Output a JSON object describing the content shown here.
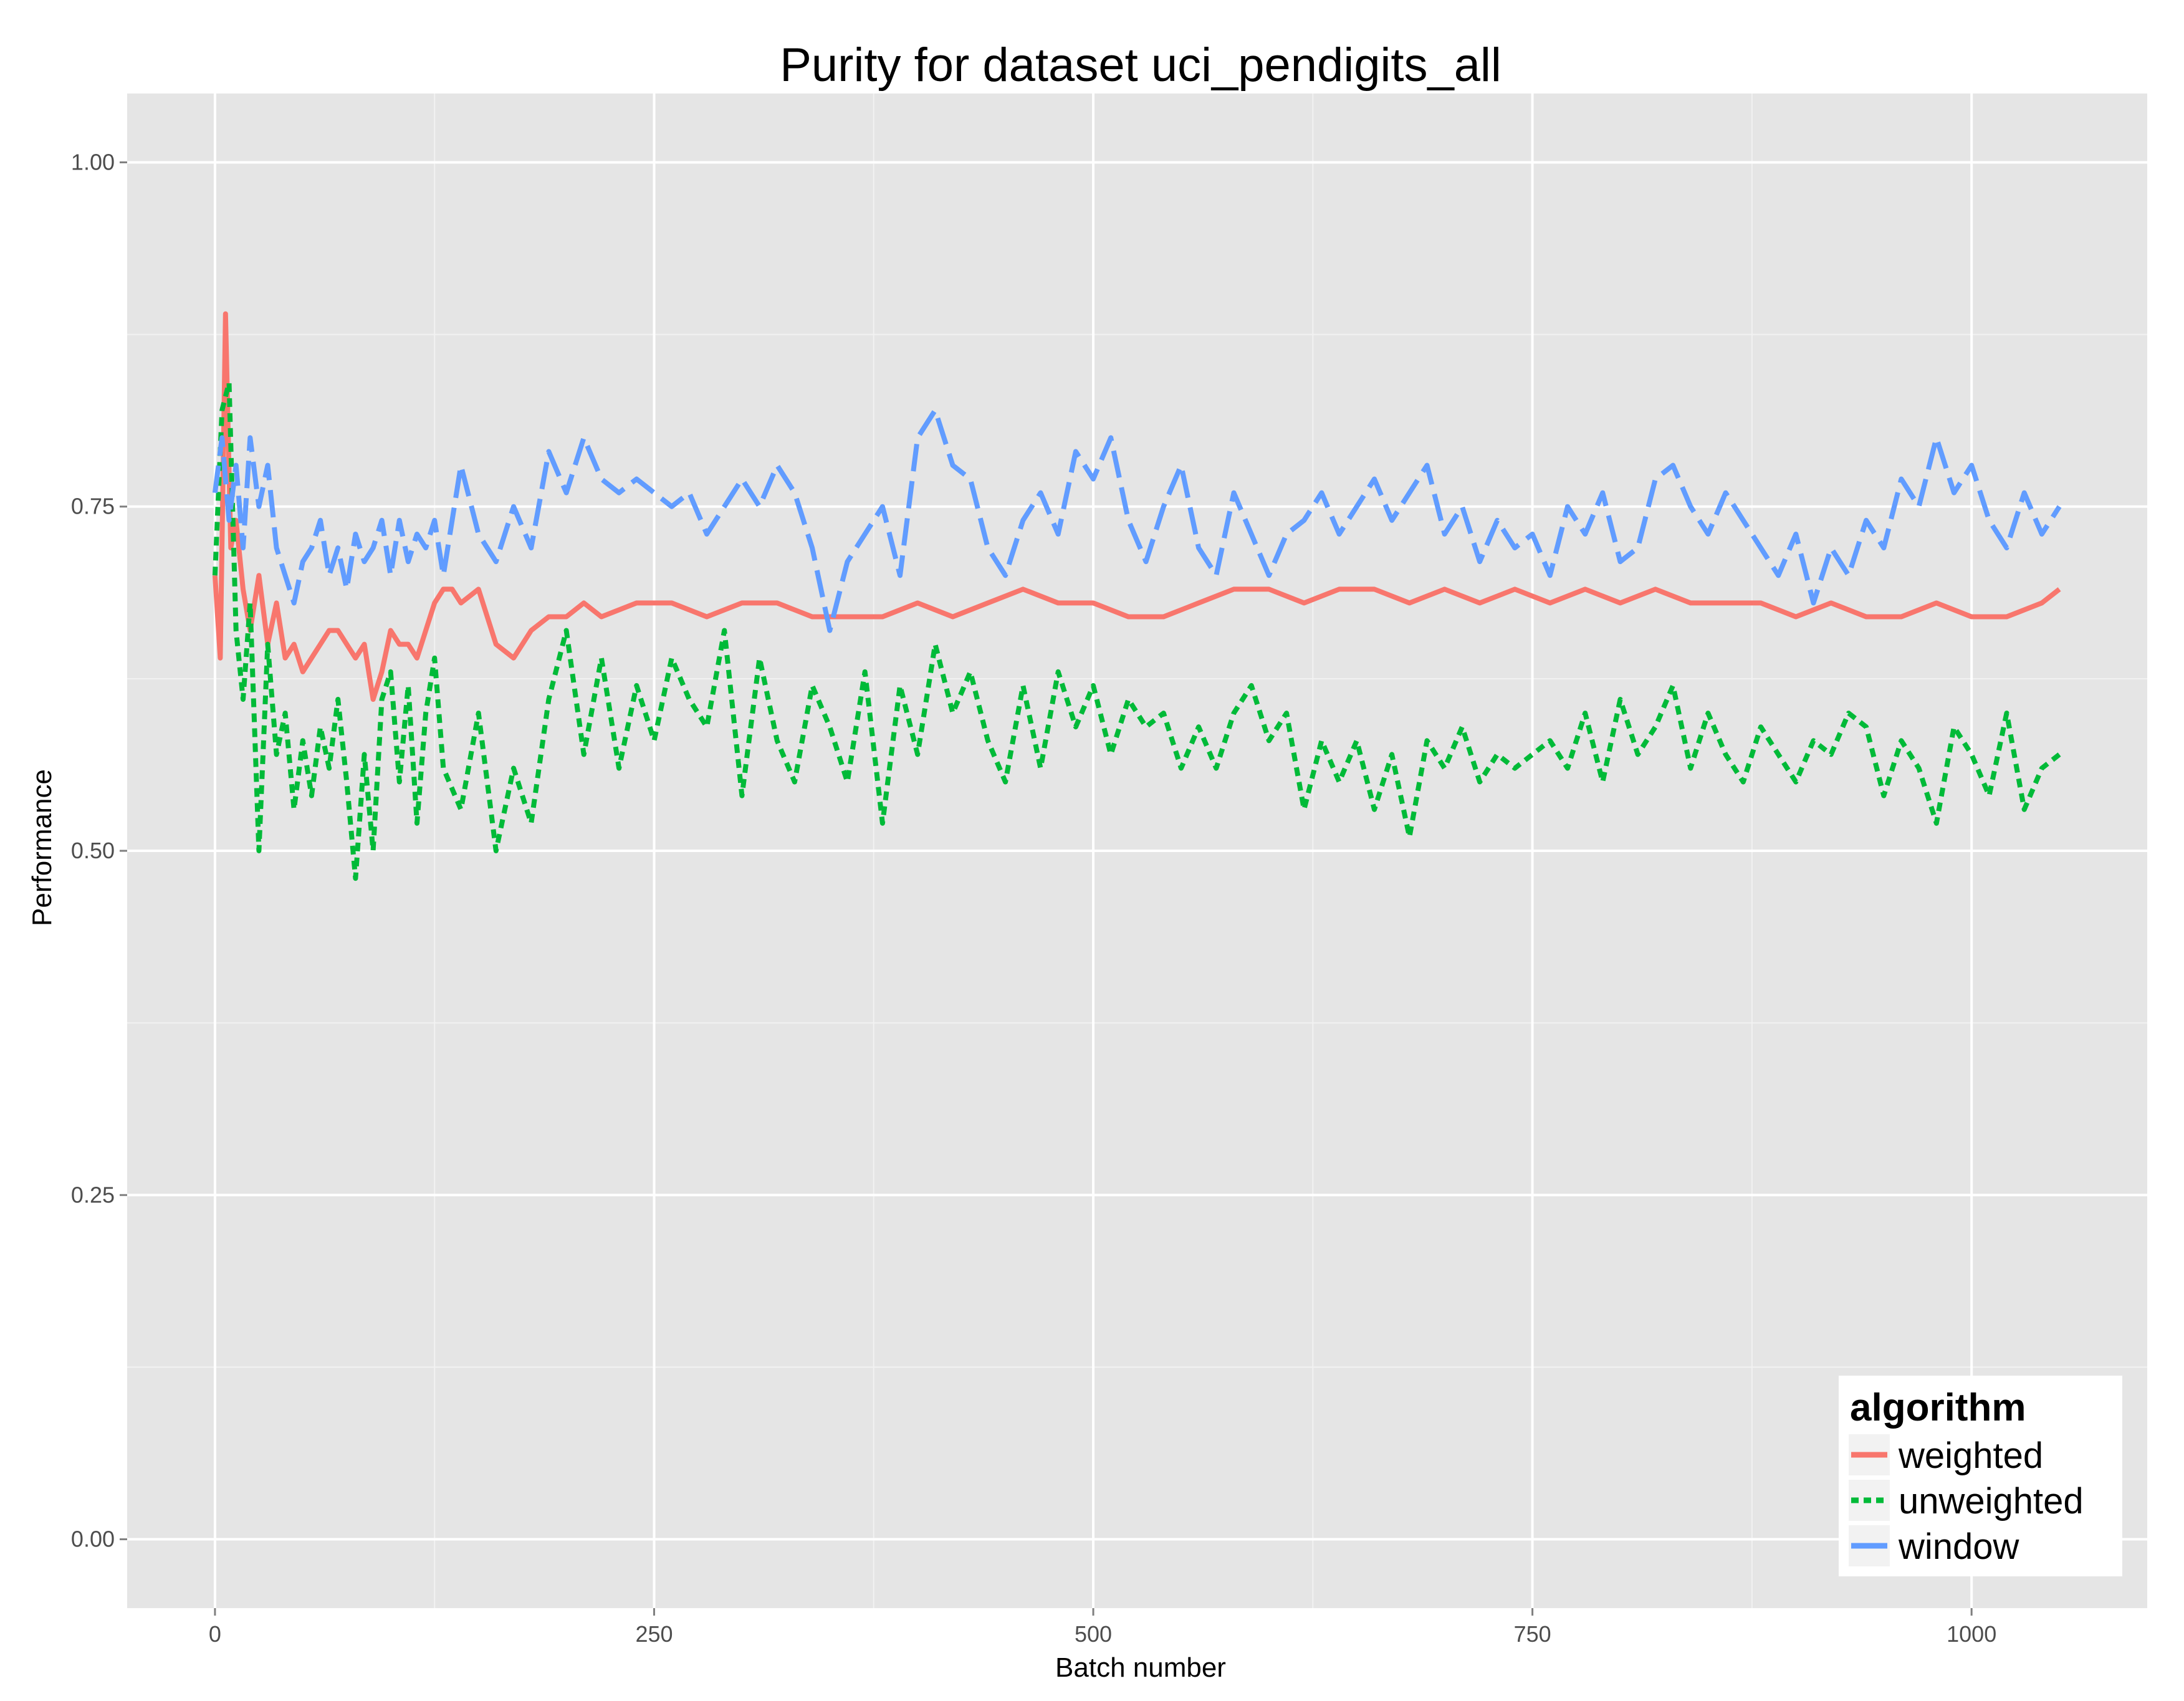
{
  "chart_data": {
    "type": "line",
    "title": "Purity for dataset uci_pendigits_all",
    "xlabel": "Batch number",
    "ylabel": "Performance",
    "xlim": [
      -50,
      1100
    ],
    "ylim": [
      -0.05,
      1.05
    ],
    "x_ticks": [
      0,
      250,
      500,
      750,
      1000
    ],
    "x_tick_labels": [
      "0",
      "250",
      "500",
      "750",
      "1000"
    ],
    "y_ticks": [
      0.0,
      0.25,
      0.5,
      0.75,
      1.0
    ],
    "y_tick_labels": [
      "0.00",
      "0.25",
      "0.50",
      "0.75",
      "1.00"
    ],
    "grid": true,
    "legend": {
      "title": "algorithm",
      "position": "bottom-right inside plot"
    },
    "series": [
      {
        "name": "weighted",
        "color": "#F8766D",
        "linestyle": "solid",
        "x": [
          0,
          3,
          6,
          9,
          12,
          16,
          20,
          25,
          30,
          35,
          40,
          45,
          50,
          55,
          60,
          65,
          70,
          75,
          80,
          85,
          90,
          95,
          100,
          105,
          110,
          115,
          120,
          125,
          130,
          135,
          140,
          150,
          160,
          170,
          180,
          190,
          200,
          210,
          220,
          240,
          260,
          280,
          300,
          320,
          340,
          360,
          380,
          400,
          420,
          440,
          460,
          480,
          500,
          520,
          540,
          560,
          580,
          600,
          620,
          640,
          660,
          680,
          700,
          720,
          740,
          760,
          780,
          800,
          820,
          840,
          860,
          880,
          900,
          920,
          940,
          960,
          980,
          1000,
          1020,
          1040,
          1050
        ],
        "y": [
          0.7,
          0.64,
          0.89,
          0.72,
          0.74,
          0.69,
          0.66,
          0.7,
          0.65,
          0.68,
          0.64,
          0.65,
          0.63,
          0.64,
          0.65,
          0.66,
          0.66,
          0.65,
          0.64,
          0.65,
          0.61,
          0.63,
          0.66,
          0.65,
          0.65,
          0.64,
          0.66,
          0.68,
          0.69,
          0.69,
          0.68,
          0.69,
          0.65,
          0.64,
          0.66,
          0.67,
          0.67,
          0.68,
          0.67,
          0.68,
          0.68,
          0.67,
          0.68,
          0.68,
          0.67,
          0.67,
          0.67,
          0.68,
          0.67,
          0.68,
          0.69,
          0.68,
          0.68,
          0.67,
          0.67,
          0.68,
          0.69,
          0.69,
          0.68,
          0.69,
          0.69,
          0.68,
          0.69,
          0.68,
          0.69,
          0.68,
          0.69,
          0.68,
          0.69,
          0.68,
          0.68,
          0.68,
          0.67,
          0.68,
          0.67,
          0.67,
          0.68,
          0.67,
          0.67,
          0.68,
          0.69
        ]
      },
      {
        "name": "unweighted",
        "color": "#00BA38",
        "linestyle": "dashed",
        "x": [
          0,
          4,
          8,
          12,
          16,
          20,
          25,
          30,
          35,
          40,
          45,
          50,
          55,
          60,
          65,
          70,
          75,
          80,
          85,
          90,
          95,
          100,
          105,
          110,
          115,
          120,
          125,
          130,
          140,
          150,
          160,
          170,
          180,
          190,
          200,
          210,
          220,
          230,
          240,
          250,
          260,
          270,
          280,
          290,
          300,
          310,
          320,
          330,
          340,
          350,
          360,
          370,
          380,
          390,
          400,
          410,
          420,
          430,
          440,
          450,
          460,
          470,
          480,
          490,
          500,
          510,
          520,
          530,
          540,
          550,
          560,
          570,
          580,
          590,
          600,
          610,
          620,
          630,
          640,
          650,
          660,
          670,
          680,
          690,
          700,
          710,
          720,
          730,
          740,
          750,
          760,
          770,
          780,
          790,
          800,
          810,
          820,
          830,
          840,
          850,
          860,
          870,
          880,
          890,
          900,
          910,
          920,
          930,
          940,
          950,
          960,
          970,
          980,
          990,
          1000,
          1010,
          1020,
          1030,
          1040,
          1050
        ],
        "y": [
          0.7,
          0.82,
          0.84,
          0.66,
          0.61,
          0.68,
          0.5,
          0.65,
          0.57,
          0.6,
          0.53,
          0.58,
          0.54,
          0.59,
          0.56,
          0.61,
          0.55,
          0.48,
          0.57,
          0.5,
          0.61,
          0.63,
          0.55,
          0.62,
          0.52,
          0.6,
          0.64,
          0.56,
          0.53,
          0.6,
          0.5,
          0.56,
          0.52,
          0.61,
          0.66,
          0.57,
          0.64,
          0.56,
          0.62,
          0.58,
          0.64,
          0.61,
          0.59,
          0.66,
          0.54,
          0.64,
          0.58,
          0.55,
          0.62,
          0.59,
          0.55,
          0.63,
          0.52,
          0.62,
          0.57,
          0.65,
          0.6,
          0.63,
          0.58,
          0.55,
          0.62,
          0.56,
          0.63,
          0.59,
          0.62,
          0.57,
          0.61,
          0.59,
          0.6,
          0.56,
          0.59,
          0.56,
          0.6,
          0.62,
          0.58,
          0.6,
          0.53,
          0.58,
          0.55,
          0.58,
          0.53,
          0.57,
          0.51,
          0.58,
          0.56,
          0.59,
          0.55,
          0.57,
          0.56,
          0.57,
          0.58,
          0.56,
          0.6,
          0.55,
          0.61,
          0.57,
          0.59,
          0.62,
          0.56,
          0.6,
          0.57,
          0.55,
          0.59,
          0.57,
          0.55,
          0.58,
          0.57,
          0.6,
          0.59,
          0.54,
          0.58,
          0.56,
          0.52,
          0.59,
          0.57,
          0.54,
          0.6,
          0.53,
          0.56,
          0.57
        ]
      },
      {
        "name": "window",
        "color": "#619CFF",
        "linestyle": "long-dashed",
        "x": [
          0,
          4,
          8,
          12,
          16,
          20,
          25,
          30,
          35,
          40,
          45,
          50,
          55,
          60,
          65,
          70,
          75,
          80,
          85,
          90,
          95,
          100,
          105,
          110,
          115,
          120,
          125,
          130,
          140,
          150,
          160,
          170,
          180,
          190,
          200,
          210,
          220,
          230,
          240,
          250,
          260,
          270,
          280,
          290,
          300,
          310,
          320,
          330,
          340,
          350,
          360,
          370,
          380,
          390,
          400,
          410,
          420,
          430,
          440,
          450,
          460,
          470,
          480,
          490,
          500,
          510,
          520,
          530,
          540,
          550,
          560,
          570,
          580,
          590,
          600,
          610,
          620,
          630,
          640,
          650,
          660,
          670,
          680,
          690,
          700,
          710,
          720,
          730,
          740,
          750,
          760,
          770,
          780,
          790,
          800,
          810,
          820,
          830,
          840,
          850,
          860,
          870,
          880,
          890,
          900,
          910,
          920,
          930,
          940,
          950,
          960,
          970,
          980,
          990,
          1000,
          1010,
          1020,
          1030,
          1040,
          1050
        ],
        "y": [
          0.76,
          0.8,
          0.74,
          0.78,
          0.72,
          0.8,
          0.75,
          0.78,
          0.72,
          0.7,
          0.68,
          0.71,
          0.72,
          0.74,
          0.7,
          0.72,
          0.69,
          0.73,
          0.71,
          0.72,
          0.74,
          0.7,
          0.74,
          0.71,
          0.73,
          0.72,
          0.74,
          0.7,
          0.78,
          0.73,
          0.71,
          0.75,
          0.72,
          0.79,
          0.76,
          0.8,
          0.77,
          0.76,
          0.77,
          0.76,
          0.75,
          0.76,
          0.73,
          0.75,
          0.77,
          0.75,
          0.78,
          0.76,
          0.72,
          0.66,
          0.71,
          0.73,
          0.75,
          0.7,
          0.8,
          0.82,
          0.78,
          0.77,
          0.72,
          0.7,
          0.74,
          0.76,
          0.73,
          0.79,
          0.77,
          0.8,
          0.74,
          0.71,
          0.75,
          0.78,
          0.72,
          0.7,
          0.76,
          0.73,
          0.7,
          0.73,
          0.74,
          0.76,
          0.73,
          0.75,
          0.77,
          0.74,
          0.76,
          0.78,
          0.73,
          0.75,
          0.71,
          0.74,
          0.72,
          0.73,
          0.7,
          0.75,
          0.73,
          0.76,
          0.71,
          0.72,
          0.77,
          0.78,
          0.75,
          0.73,
          0.76,
          0.74,
          0.72,
          0.7,
          0.73,
          0.68,
          0.72,
          0.7,
          0.74,
          0.72,
          0.77,
          0.75,
          0.8,
          0.76,
          0.78,
          0.74,
          0.72,
          0.76,
          0.73,
          0.75
        ]
      }
    ]
  }
}
